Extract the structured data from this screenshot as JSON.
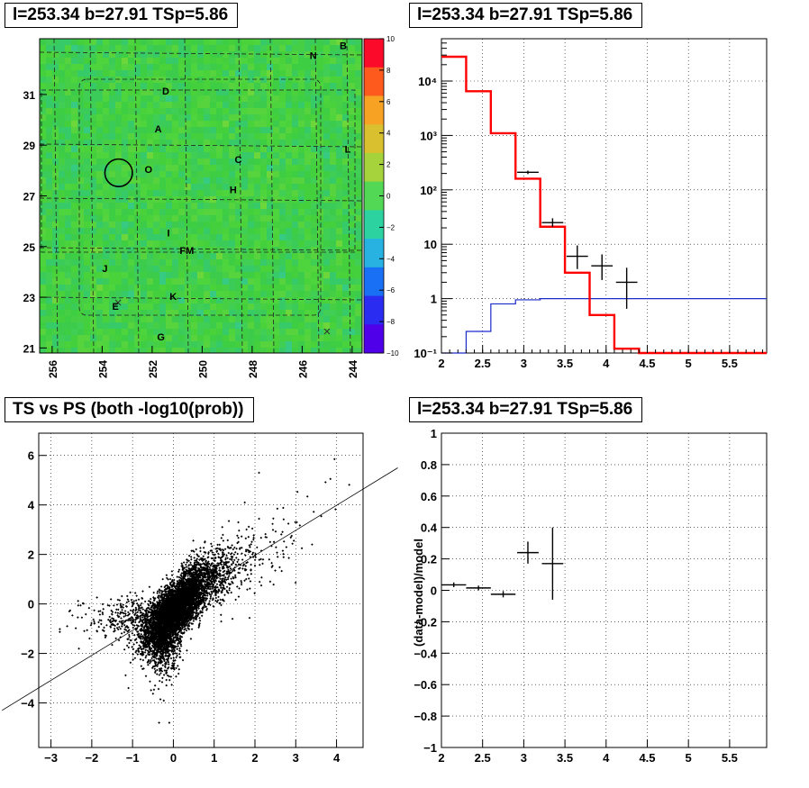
{
  "chart_data": [
    {
      "type": "heatmap",
      "title": "l=253.34 b=27.91 TSp=5.86",
      "x_ticks": [
        "256",
        "254",
        "252",
        "250",
        "248",
        "246",
        "244"
      ],
      "y_ticks": [
        "21",
        "23",
        "25",
        "27",
        "29",
        "31"
      ],
      "xlim": [
        256.5,
        243.6
      ],
      "ylim": [
        20.8,
        33.2
      ],
      "colorbar": {
        "range": [
          -10,
          10
        ],
        "ticks": [
          "10",
          "8",
          "6",
          "4",
          "2",
          "0",
          "−2",
          "−4",
          "−6",
          "−8",
          "−10"
        ],
        "colors": [
          "#fb0a2a",
          "#fe5a1e",
          "#f7a222",
          "#d9c02e",
          "#a6d33b",
          "#52d855",
          "#2cd3a0",
          "#27b2e2",
          "#1a70f4",
          "#2a2cf2",
          "#5000e8"
        ]
      },
      "labels": [
        {
          "text": "B",
          "x": 244.5,
          "y": 32.8
        },
        {
          "text": "N",
          "x": 245.7,
          "y": 32.4
        },
        {
          "text": "D",
          "x": 251.6,
          "y": 31.0
        },
        {
          "text": "A",
          "x": 251.9,
          "y": 29.5
        },
        {
          "text": "L",
          "x": 244.3,
          "y": 28.7
        },
        {
          "text": "C",
          "x": 248.7,
          "y": 28.3
        },
        {
          "text": "O",
          "x": 252.3,
          "y": 27.9
        },
        {
          "text": "H",
          "x": 248.9,
          "y": 27.1
        },
        {
          "text": "I",
          "x": 251.4,
          "y": 25.4
        },
        {
          "text": "FM",
          "x": 250.9,
          "y": 24.7
        },
        {
          "text": "J",
          "x": 254.0,
          "y": 24.0
        },
        {
          "text": "K",
          "x": 251.3,
          "y": 22.9
        },
        {
          "text": "E",
          "x": 253.6,
          "y": 22.5
        },
        {
          "text": "G",
          "x": 251.8,
          "y": 21.3
        }
      ],
      "circle": {
        "x": 253.34,
        "y": 27.91,
        "r": 0.55
      }
    },
    {
      "type": "line",
      "title": "l=253.34 b=27.91 TSp=5.86",
      "x_ticks": [
        "2",
        "2.5",
        "3",
        "3.5",
        "4",
        "4.5",
        "5",
        "5.5"
      ],
      "y_ticks": [
        "10⁻¹",
        "1",
        "10",
        "10²",
        "10³",
        "10⁴"
      ],
      "xlim": [
        2.0,
        5.95
      ],
      "ylim": [
        0.1,
        60000
      ],
      "yscale": "log",
      "bin_edges": [
        2.0,
        2.3,
        2.6,
        2.9,
        3.2,
        3.5,
        3.8,
        4.1,
        4.4,
        5.95
      ],
      "model": [
        28000,
        6500,
        1100,
        160,
        21,
        3,
        0.5,
        0.12,
        0.1
      ],
      "background": [
        0.1,
        0.25,
        0.8,
        0.95,
        1.0,
        1.0,
        1.0,
        1.0,
        1.0
      ],
      "data": [
        {
          "x": 3.05,
          "y": 210,
          "xerr": 0.13,
          "ylo": 195,
          "yhi": 225
        },
        {
          "x": 3.35,
          "y": 25,
          "xerr": 0.13,
          "ylo": 21,
          "yhi": 30
        },
        {
          "x": 3.65,
          "y": 6,
          "xerr": 0.13,
          "ylo": 3.5,
          "yhi": 9.5
        },
        {
          "x": 3.95,
          "y": 4,
          "xerr": 0.13,
          "ylo": 2.2,
          "yhi": 6.5
        },
        {
          "x": 4.25,
          "y": 2,
          "xerr": 0.13,
          "ylo": 0.65,
          "yhi": 3.7
        }
      ]
    },
    {
      "type": "scatter",
      "title": "TS vs PS (both -log10(prob))",
      "x_ticks": [
        "−3",
        "−2",
        "−1",
        "0",
        "1",
        "2",
        "3",
        "4"
      ],
      "y_ticks": [
        "−4",
        "−2",
        "0",
        "2",
        "4",
        "6"
      ],
      "xlim": [
        -3.3,
        4.65
      ],
      "ylim": [
        -5.8,
        6.9
      ],
      "fit_line": {
        "x0": -4.2,
        "y0": -4.3,
        "x1": 5.5,
        "y1": 5.5
      },
      "outliers": [
        [
          2.1,
          5.3
        ],
        [
          3.95,
          5.85
        ],
        [
          3.85,
          5.05
        ],
        [
          2.55,
          3.85
        ],
        [
          2.45,
          3.45
        ],
        [
          -0.35,
          -4.8
        ],
        [
          -0.1,
          -4.8
        ],
        [
          1.75,
          4.1
        ],
        [
          -2.55,
          -0.3
        ],
        [
          -1.1,
          -3.4
        ],
        [
          2.9,
          2.75
        ],
        [
          3.15,
          2.25
        ]
      ]
    },
    {
      "type": "scatter",
      "title": "l=253.34 b=27.91 TSp=5.86",
      "ylabel": "(data-model)/model",
      "x_ticks": [
        "2",
        "2.5",
        "3",
        "3.5",
        "4",
        "4.5",
        "5",
        "5.5"
      ],
      "y_ticks": [
        "−1",
        "−0.8",
        "−0.6",
        "−0.4",
        "−0.2",
        "0",
        "0.2",
        "0.4",
        "0.6",
        "0.8",
        "1"
      ],
      "xlim": [
        2.0,
        5.95
      ],
      "ylim": [
        -1.0,
        1.0
      ],
      "points": [
        {
          "x": 2.15,
          "y": 0.035,
          "xerr": 0.15,
          "yerr": 0.015
        },
        {
          "x": 2.45,
          "y": 0.015,
          "xerr": 0.15,
          "yerr": 0.015
        },
        {
          "x": 2.75,
          "y": -0.025,
          "xerr": 0.15,
          "yerr": 0.02
        },
        {
          "x": 3.05,
          "y": 0.24,
          "xerr": 0.13,
          "yerr": 0.07
        },
        {
          "x": 3.35,
          "y": 0.17,
          "xerr": 0.13,
          "yerr": 0.23
        }
      ]
    }
  ]
}
